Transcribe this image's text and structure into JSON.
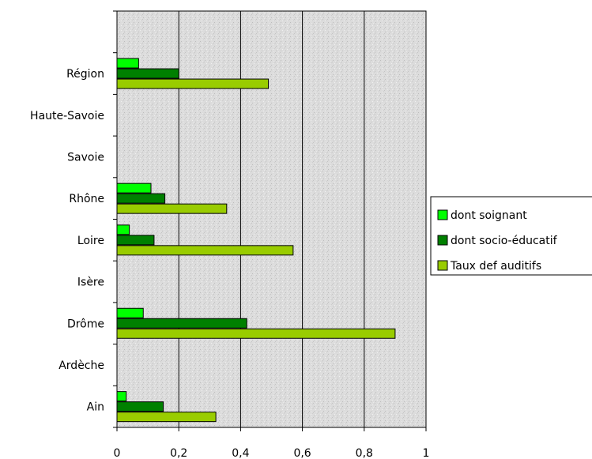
{
  "chart_data": {
    "type": "bar",
    "orientation": "horizontal",
    "categories": [
      "Ain",
      "Ardèche",
      "Drôme",
      "Isère",
      "Loire",
      "Rhône",
      "Savoie",
      "Haute-Savoie",
      "Région"
    ],
    "series": [
      {
        "name": "dont soignant",
        "color": "#00ff00",
        "values": [
          0.03,
          null,
          0.085,
          null,
          0.04,
          0.11,
          null,
          null,
          0.07
        ]
      },
      {
        "name": "dont socio-éducatif",
        "color": "#008000",
        "values": [
          0.15,
          null,
          0.42,
          null,
          0.12,
          0.155,
          null,
          null,
          0.2
        ]
      },
      {
        "name": "Taux def auditifs",
        "color": "#99cc00",
        "values": [
          0.32,
          null,
          0.9,
          null,
          0.57,
          0.355,
          null,
          null,
          0.49
        ]
      }
    ],
    "xlim": [
      0,
      1
    ],
    "xticks": [
      "0",
      "0,2",
      "0,4",
      "0,6",
      "0,8",
      "1"
    ],
    "grid": "vertical",
    "legend_position": "right",
    "title": "",
    "xlabel": "",
    "ylabel": ""
  }
}
